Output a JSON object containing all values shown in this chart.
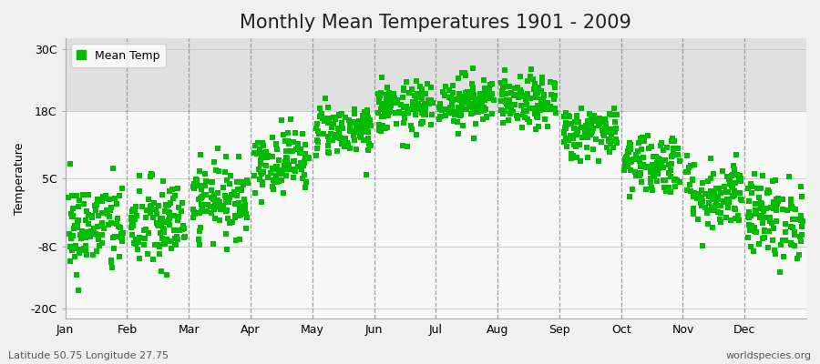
{
  "title": "Monthly Mean Temperatures 1901 - 2009",
  "ylabel": "Temperature",
  "yticks": [
    -20,
    -8,
    5,
    18,
    30
  ],
  "ytick_labels": [
    "-20C",
    "-8C",
    "5C",
    "18C",
    "30C"
  ],
  "ylim": [
    -22,
    32
  ],
  "months": [
    "Jan",
    "Feb",
    "Mar",
    "Apr",
    "May",
    "Jun",
    "Jul",
    "Aug",
    "Sep",
    "Oct",
    "Nov",
    "Dec"
  ],
  "dot_color": "#00bb00",
  "background_color": "#f0f0f0",
  "plot_bg_color": "#f0f0f0",
  "band_color_upper": "#e0e0e0",
  "band_color_lower": "#f8f8f8",
  "legend_label": "Mean Temp",
  "bottom_left_text": "Latitude 50.75 Longitude 27.75",
  "bottom_right_text": "worldspecies.org",
  "mean_temps": [
    -4.5,
    -4.0,
    1.0,
    8.5,
    14.5,
    18.5,
    20.0,
    19.5,
    14.0,
    8.0,
    2.0,
    -2.5
  ],
  "std_temps": [
    4.5,
    4.5,
    3.5,
    3.0,
    2.5,
    2.5,
    2.5,
    2.5,
    2.5,
    3.0,
    3.5,
    4.0
  ],
  "n_years": 109,
  "seed": 42,
  "title_fontsize": 15,
  "axis_fontsize": 9,
  "tick_fontsize": 9,
  "legend_fontsize": 9,
  "marker_size": 18
}
